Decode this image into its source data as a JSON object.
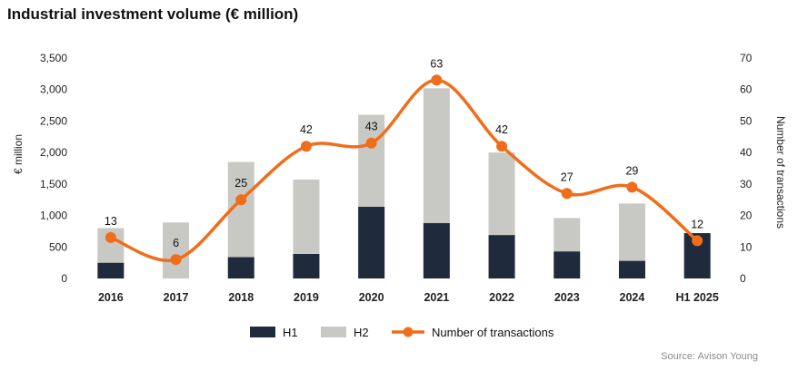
{
  "chart_data": {
    "type": "bar",
    "title": "Industrial investment volume (€ million)",
    "categories": [
      "2016",
      "2017",
      "2018",
      "2019",
      "2020",
      "2021",
      "2022",
      "2023",
      "2024",
      "H1 2025"
    ],
    "series": [
      {
        "name": "H1",
        "kind": "stacked-bar",
        "axis": "left",
        "color": "#1f2a3c",
        "values": [
          250,
          0,
          340,
          390,
          1140,
          880,
          690,
          430,
          280,
          720
        ]
      },
      {
        "name": "H2",
        "kind": "stacked-bar",
        "axis": "left",
        "color": "#c8c8c4",
        "values": [
          550,
          890,
          1510,
          1180,
          1460,
          2140,
          1310,
          530,
          910,
          0
        ]
      },
      {
        "name": "Number of transactions",
        "kind": "line",
        "axis": "right",
        "color": "#f06d1a",
        "values": [
          13,
          6,
          25,
          42,
          43,
          63,
          42,
          27,
          29,
          12
        ]
      }
    ],
    "ylabel": "€ million",
    "y2label": "Number of transactions",
    "ylim": [
      0,
      3500
    ],
    "y2lim": [
      0,
      70
    ],
    "yticks": [
      "0",
      "500",
      "1,000",
      "1,500",
      "2,000",
      "2,500",
      "3,000",
      "3,500"
    ],
    "y2ticks": [
      "0",
      "10",
      "20",
      "30",
      "40",
      "50",
      "60",
      "70"
    ],
    "grid": false,
    "legend_position": "bottom"
  },
  "source": "Source: Avison Young"
}
